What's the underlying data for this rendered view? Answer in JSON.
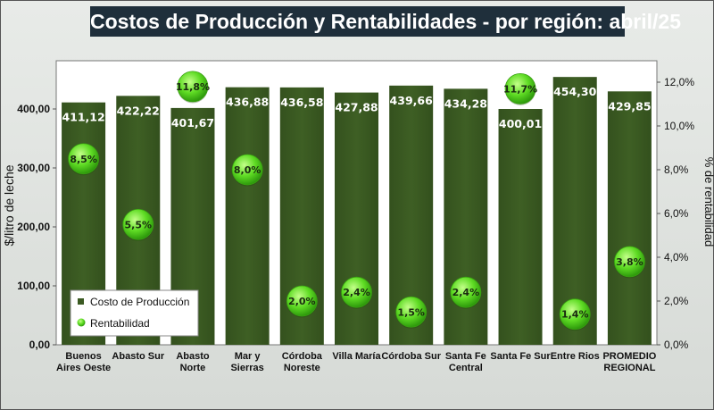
{
  "title": "Costos de Producción y Rentabilidades - por región: abril/25",
  "chart_data": {
    "type": "bar",
    "title": "Costos de Producción y Rentabilidades - por región: abril/25",
    "categories": [
      [
        "Buenos",
        "Aires Oeste"
      ],
      [
        "Abasto Sur"
      ],
      [
        "Abasto",
        "Norte"
      ],
      [
        "Mar y",
        "Sierras"
      ],
      [
        "Córdoba",
        "Noreste"
      ],
      [
        "Villa María"
      ],
      [
        "Córdoba Sur"
      ],
      [
        "Santa Fe",
        "Central"
      ],
      [
        "Santa Fe Sur"
      ],
      [
        "Entre Rios"
      ],
      [
        "PROMEDIO",
        "REGIONAL"
      ]
    ],
    "series": [
      {
        "name": "Costo de Producción",
        "axis": "left",
        "color": "#3b5a22",
        "values": [
          411.12,
          422.22,
          401.67,
          436.88,
          436.58,
          427.88,
          439.66,
          434.28,
          400.01,
          454.3,
          429.85
        ],
        "labels": [
          "411,12",
          "422,22",
          "401,67",
          "436,88",
          "436,58",
          "427,88",
          "439,66",
          "434,28",
          "400,01",
          "454,30",
          "429,85"
        ]
      },
      {
        "name": "Rentabilidad",
        "axis": "right",
        "color": "#4fd11c",
        "values": [
          8.5,
          5.5,
          11.8,
          8.0,
          2.0,
          2.4,
          1.5,
          2.4,
          11.7,
          1.4,
          3.8
        ],
        "labels": [
          "8,5%",
          "5,5%",
          "11,8%",
          "8,0%",
          "2,0%",
          "2,4%",
          "1,5%",
          "2,4%",
          "11,7%",
          "1,4%",
          "3,8%"
        ]
      }
    ],
    "y_left": {
      "label": "$/litro de leche",
      "ylim": [
        0,
        480
      ],
      "ticks": [
        0,
        100,
        200,
        300,
        400
      ],
      "tick_labels": [
        "0,00",
        "100,00",
        "200,00",
        "300,00",
        "400,00"
      ]
    },
    "y_right": {
      "label": "% de rentabilidad",
      "ylim": [
        0,
        13
      ],
      "ticks": [
        0,
        2,
        4,
        6,
        8,
        10,
        12
      ],
      "tick_labels": [
        "0,0%",
        "2,0%",
        "4,0%",
        "6,0%",
        "8,0%",
        "10,0%",
        "12,0%"
      ]
    },
    "legend": {
      "position": "bottom-left",
      "entries": [
        "Costo de Producción",
        "Rentabilidad"
      ]
    }
  }
}
